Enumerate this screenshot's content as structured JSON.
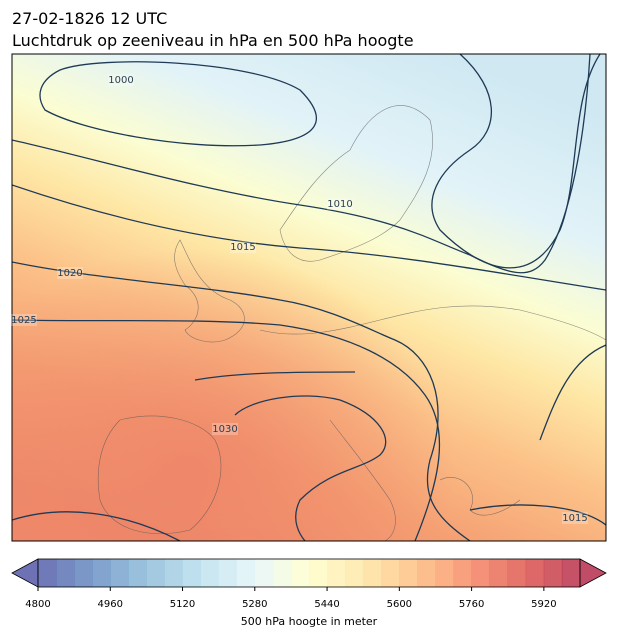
{
  "title": [
    "27-02-1826 12 UTC",
    "Luchtdruk op zeeniveau in hPa en 500 hPa hoogte"
  ],
  "map": {
    "isobar_labels": [
      1000,
      1010,
      1015,
      1020,
      1025,
      1030,
      1015
    ]
  },
  "colorbar": {
    "range": [
      4800,
      6000
    ],
    "step": 40,
    "cmap": "RdYlBu_r",
    "ticks": [
      4800,
      4960,
      5120,
      5280,
      5440,
      5600,
      5760,
      5920
    ],
    "label": "500 hPa hoogte in meter"
  }
}
